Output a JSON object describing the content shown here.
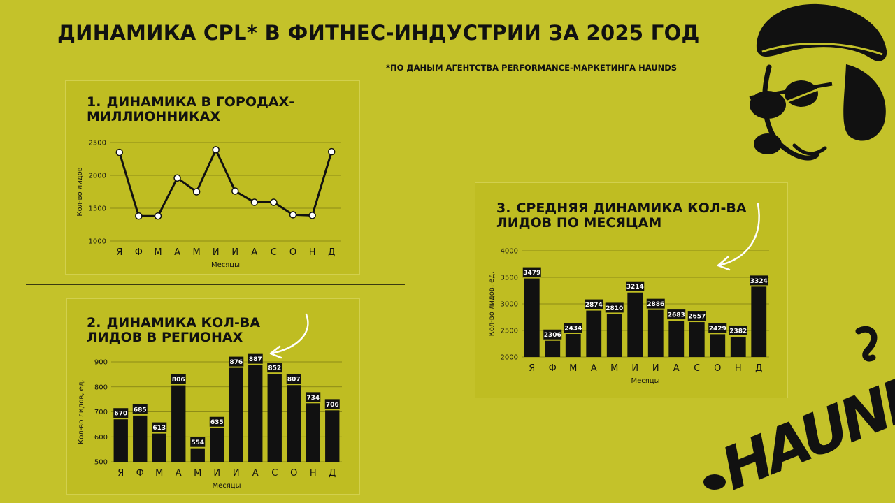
{
  "header": {
    "title": "ДИНАМИКА CPL* В ФИТНЕС-ИНДУСТРИИ ЗА 2025 ГОД",
    "subtitle": "*ПО ДАНЫМ АГЕНТСТВА PERFORMANCE-МАРКЕТИНГА HAUNDS"
  },
  "panels": {
    "p1": {
      "num": "1.",
      "title": "ДИНАМИКА В ГОРОДАХ-МИЛЛИОННИКАХ"
    },
    "p2": {
      "num": "2.",
      "title": "ДИНАМИКА КОЛ-ВА ЛИДОВ В РЕГИОНАХ"
    },
    "p3": {
      "num": "3.",
      "title": "СРЕДНЯЯ ДИНАМИКА КОЛ-ВА ЛИДОВ ПО МЕСЯЦАМ"
    }
  },
  "brand": {
    "logo_text": "HAUNDS",
    "accent": "#c4c22a",
    "ink": "#111111"
  },
  "chart_data": [
    {
      "type": "line",
      "title": "ДИНАМИКА В ГОРОДАХ-МИЛЛИОННИКАХ",
      "xlabel": "Месяцы",
      "ylabel": "Кол-во лидов",
      "categories": [
        "Я",
        "Ф",
        "М",
        "А",
        "М",
        "И",
        "И",
        "А",
        "С",
        "О",
        "Н",
        "Д"
      ],
      "values": [
        2350,
        1380,
        1380,
        1960,
        1750,
        2390,
        1760,
        1590,
        1590,
        1400,
        1390,
        2360
      ],
      "ylim": [
        1000,
        2500
      ],
      "yticks": [
        1000,
        1500,
        2000,
        2500
      ],
      "grid": true
    },
    {
      "type": "bar",
      "title": "ДИНАМИКА КОЛ-ВА ЛИДОВ В РЕГИОНАХ",
      "xlabel": "Месяцы",
      "ylabel": "Кол-во лидов, ед.",
      "categories": [
        "Я",
        "Ф",
        "М",
        "А",
        "М",
        "И",
        "И",
        "А",
        "С",
        "О",
        "Н",
        "Д"
      ],
      "values": [
        670,
        685,
        613,
        806,
        554,
        635,
        876,
        887,
        852,
        807,
        734,
        706
      ],
      "ylim": [
        500,
        900
      ],
      "yticks": [
        500,
        600,
        700,
        800,
        900
      ],
      "grid": true
    },
    {
      "type": "bar",
      "title": "СРЕДНЯЯ ДИНАМИКА КОЛ-ВА ЛИДОВ ПО МЕСЯЦАМ",
      "xlabel": "Месяцы",
      "ylabel": "Кол-во лидов, ед.",
      "categories": [
        "Я",
        "Ф",
        "М",
        "А",
        "М",
        "И",
        "И",
        "А",
        "С",
        "О",
        "Н",
        "Д"
      ],
      "values": [
        3479,
        2306,
        2434,
        2874,
        2810,
        3214,
        2886,
        2683,
        2657,
        2429,
        2382,
        3324
      ],
      "ylim": [
        2000,
        4000
      ],
      "yticks": [
        2000,
        2500,
        3000,
        3500,
        4000
      ],
      "grid": true
    }
  ]
}
